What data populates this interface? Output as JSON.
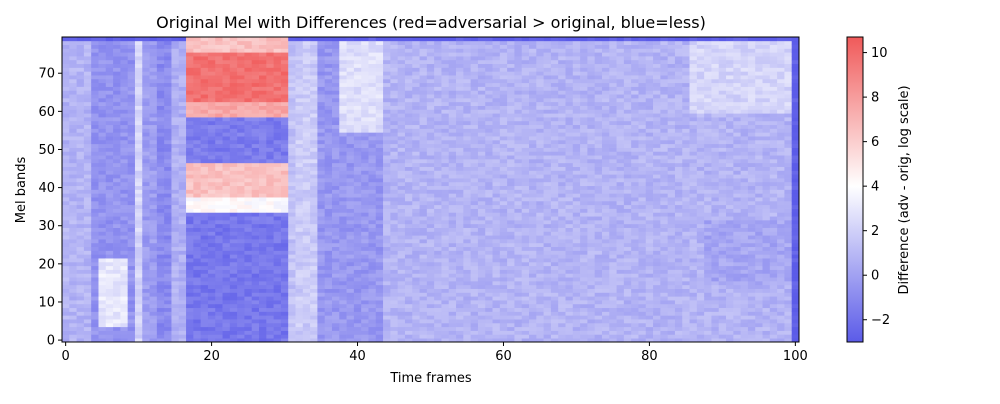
{
  "chart_data": {
    "type": "heatmap",
    "title": "Original Mel with Differences (red=adversarial > original, blue=less)",
    "xlabel": "Time frames",
    "ylabel": "Mel bands",
    "xlim": [
      -0.5,
      100.5
    ],
    "ylim": [
      -0.5,
      79.5
    ],
    "x_ticks": [
      0,
      20,
      40,
      60,
      80,
      100
    ],
    "y_ticks": [
      0,
      10,
      20,
      30,
      40,
      50,
      60,
      70
    ],
    "n_time_frames": 101,
    "n_mel_bands": 80,
    "colorbar": {
      "label": "Difference (adv - orig, log scale)",
      "range": [
        -3.0,
        10.7
      ],
      "center": 4.0,
      "ticks": [
        -2,
        0,
        2,
        4,
        6,
        8,
        10
      ],
      "low_color": "#5b5be8",
      "mid_color": "#ffffff",
      "high_color": "#f05a5a"
    },
    "regions": [
      {
        "t0": 0,
        "t1": 100,
        "b0": 0,
        "b1": 79,
        "value": 0.8,
        "label": "background"
      },
      {
        "t0": 4,
        "t1": 10,
        "b0": 0,
        "b1": 79,
        "value": -0.6,
        "label": "frames 4-10 dark column"
      },
      {
        "t0": 5,
        "t1": 9,
        "b0": 4,
        "b1": 22,
        "value": 3.0,
        "label": "low-band light patch"
      },
      {
        "t0": 10,
        "t1": 11,
        "b0": 0,
        "b1": 79,
        "value": 2.2,
        "label": "light gap"
      },
      {
        "t0": 11,
        "t1": 13,
        "b0": 0,
        "b1": 79,
        "value": -0.2
      },
      {
        "t0": 13,
        "t1": 15,
        "b0": 0,
        "b1": 79,
        "value": -1.0
      },
      {
        "t0": 15,
        "t1": 17,
        "b0": 0,
        "b1": 79,
        "value": 0.6
      },
      {
        "t0": 17,
        "t1": 31,
        "b0": 0,
        "b1": 34,
        "value": -1.8
      },
      {
        "t0": 17,
        "t1": 31,
        "b0": 34,
        "b1": 38,
        "value": 4.0
      },
      {
        "t0": 17,
        "t1": 31,
        "b0": 38,
        "b1": 47,
        "value": 6.5,
        "label": "red band 38-46"
      },
      {
        "t0": 17,
        "t1": 31,
        "b0": 47,
        "b1": 59,
        "value": -1.6
      },
      {
        "t0": 17,
        "t1": 31,
        "b0": 59,
        "b1": 63,
        "value": 7.5
      },
      {
        "t0": 17,
        "t1": 31,
        "b0": 63,
        "b1": 76,
        "value": 9.8,
        "label": "red band 63-75"
      },
      {
        "t0": 17,
        "t1": 31,
        "b0": 76,
        "b1": 80,
        "value": 6.5
      },
      {
        "t0": 31,
        "t1": 32,
        "b0": 0,
        "b1": 79,
        "value": 1.4
      },
      {
        "t0": 32,
        "t1": 35,
        "b0": 0,
        "b1": 79,
        "value": 1.8
      },
      {
        "t0": 35,
        "t1": 45,
        "b0": 0,
        "b1": 79,
        "value": -0.4,
        "label": "frames 35-44 column"
      },
      {
        "t0": 38,
        "t1": 44,
        "b0": 55,
        "b1": 79,
        "value": 2.6
      },
      {
        "t0": 44,
        "t1": 100,
        "b0": 0,
        "b1": 79,
        "value": 0.8
      },
      {
        "t0": 86,
        "t1": 100,
        "b0": 60,
        "b1": 79,
        "value": 2.2
      },
      {
        "t0": 88,
        "t1": 100,
        "b0": 15,
        "b1": 32,
        "value": 0.2
      }
    ]
  }
}
